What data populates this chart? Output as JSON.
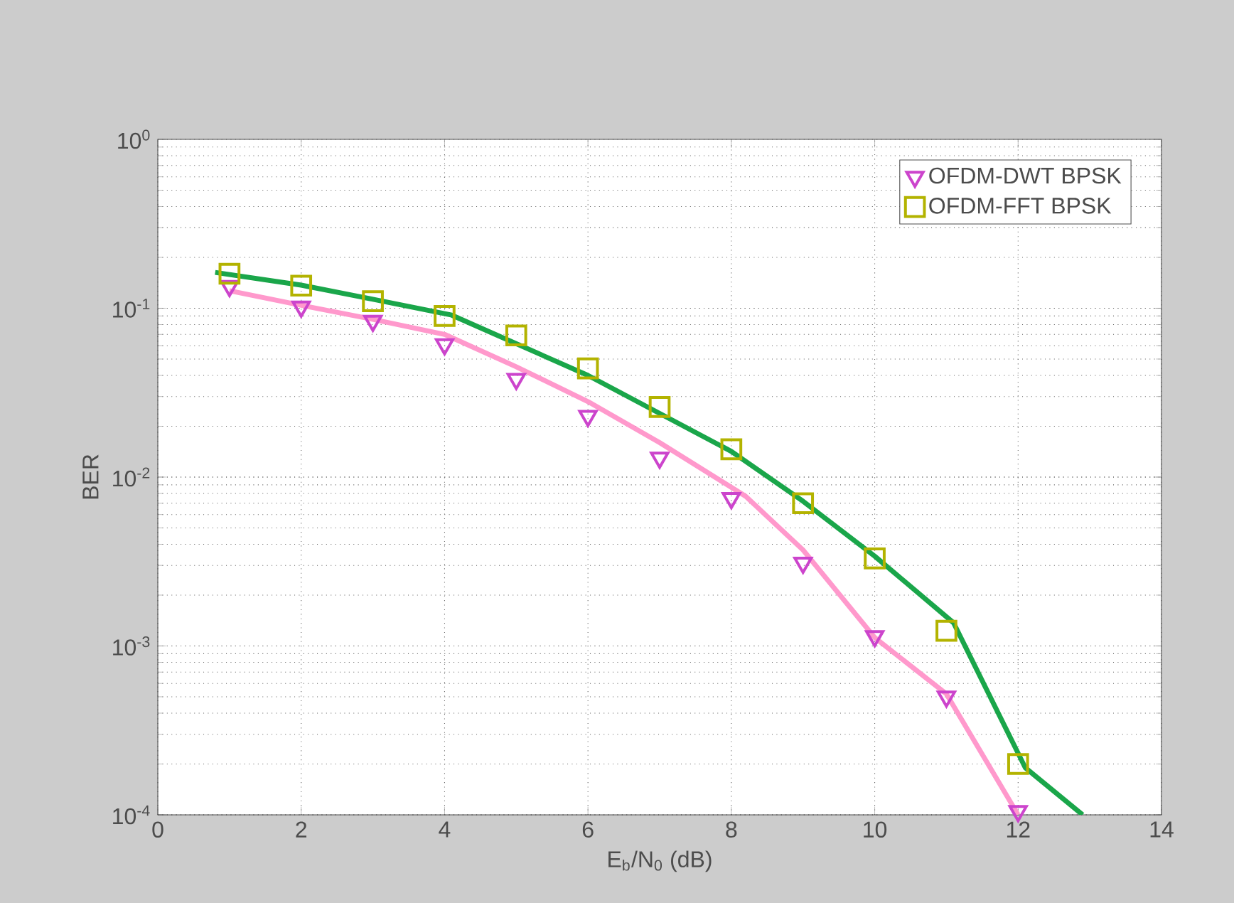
{
  "chart_data": {
    "type": "line",
    "xlabel": "E$_{b}$/N$_{0}$ (dB)",
    "ylabel": "BER",
    "log": "y",
    "grid": true,
    "legend": "top right",
    "xlim": [
      0,
      14
    ],
    "xticks": [
      0,
      2,
      4,
      6,
      8,
      10,
      12,
      14
    ],
    "ylim": [
      0.0001,
      1
    ],
    "yticks": [
      {
        "value": 0.0001,
        "label": "10$^{-4}$"
      },
      {
        "value": 0.001,
        "label": "10$^{-3}$"
      },
      {
        "value": 0.01,
        "label": "10$^{-2}$"
      },
      {
        "value": 0.1,
        "label": "10$^{-1}$"
      },
      {
        "value": 1,
        "label": "10$^{0}$"
      }
    ],
    "series": [
      {
        "type": "line",
        "color": "#ff99cc",
        "x": [
          1,
          2,
          3,
          4,
          5,
          6,
          7,
          8.2,
          9,
          10,
          11,
          12
        ],
        "values": [
          0.127,
          0.104,
          0.086,
          0.07,
          0.045,
          0.028,
          0.016,
          0.0077,
          0.0037,
          0.00112,
          0.00052,
          0.0001
        ]
      },
      {
        "type": "line",
        "color": "#1aa64a",
        "x": [
          0.8,
          2,
          3,
          4.1,
          6,
          8,
          9,
          10,
          11.1,
          12.1,
          12.9
        ],
        "values": [
          0.163,
          0.137,
          0.113,
          0.091,
          0.04,
          0.0142,
          0.0072,
          0.0034,
          0.00137,
          0.00019,
          0.0001
        ]
      },
      {
        "type": "scatter",
        "name": "OFDM-DWT BPSK",
        "color": "#cc44cc",
        "marker": "triangle",
        "x": [
          1,
          2,
          3,
          4,
          5,
          6,
          7,
          8,
          9,
          10,
          11,
          12
        ],
        "values": [
          0.135,
          0.102,
          0.084,
          0.061,
          0.038,
          0.023,
          0.013,
          0.0075,
          0.0031,
          0.00114,
          0.0005,
          0.000105
        ]
      },
      {
        "type": "scatter",
        "name": "OFDM-FFT BPSK",
        "color": "#b3b300",
        "marker": "square",
        "x": [
          1,
          2,
          3,
          4,
          5,
          6,
          7,
          8,
          9,
          10,
          11,
          12
        ],
        "values": [
          0.16,
          0.136,
          0.11,
          0.09,
          0.069,
          0.044,
          0.026,
          0.0146,
          0.007,
          0.0033,
          0.00123,
          0.0002
        ]
      }
    ]
  }
}
